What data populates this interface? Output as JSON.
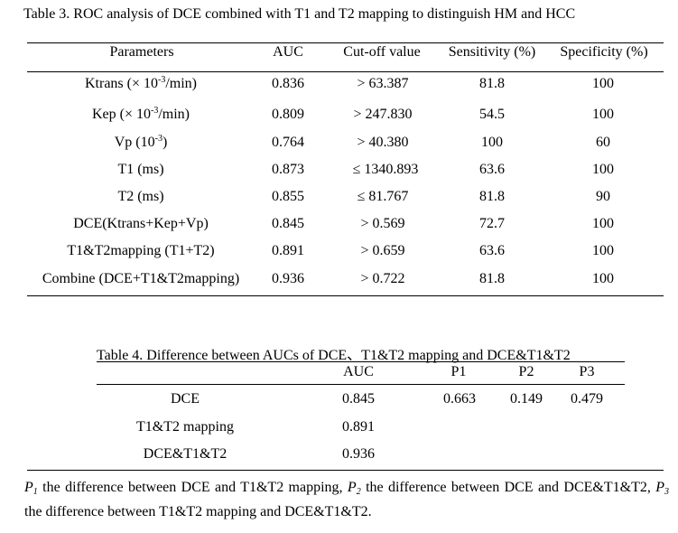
{
  "table3": {
    "caption": "Table 3. ROC analysis of DCE combined with T1 and T2 mapping to distinguish HM and HCC",
    "headers": [
      "Parameters",
      "AUC",
      "Cut-off value",
      "Sensitivity (%)",
      "Specificity (%)"
    ],
    "rows": [
      {
        "param": "Ktrans (× 10",
        "param_sup": "-3",
        "param_tail": "/min)",
        "auc": "0.836",
        "cutoff": "> 63.387",
        "sens": "81.8",
        "spec": "100"
      },
      {
        "param": "Kep (× 10",
        "param_sup": "-3",
        "param_tail": "/min)",
        "auc": "0.809",
        "cutoff": "> 247.830",
        "sens": "54.5",
        "spec": "100"
      },
      {
        "param": "Vp (10",
        "param_sup": "-3",
        "param_tail": ")",
        "auc": "0.764",
        "cutoff": "> 40.380",
        "sens": "100",
        "spec": "60"
      },
      {
        "param": "T1 (ms)",
        "auc": "0.873",
        "cutoff": "≤ 1340.893",
        "sens": "63.6",
        "spec": "100"
      },
      {
        "param": "T2 (ms)",
        "auc": "0.855",
        "cutoff": "≤ 81.767",
        "sens": "81.8",
        "spec": "90"
      },
      {
        "param": "DCE(Ktrans+Kep+Vp)",
        "auc": "0.845",
        "cutoff": "> 0.569",
        "sens": "72.7",
        "spec": "100"
      },
      {
        "param": "T1&T2mapping (T1+T2)",
        "auc": "0.891",
        "cutoff": "> 0.659",
        "sens": "63.6",
        "spec": "100"
      },
      {
        "param": "Combine (DCE+T1&T2mapping)",
        "auc": "0.936",
        "cutoff": "> 0.722",
        "sens": "81.8",
        "spec": "100"
      }
    ]
  },
  "table4": {
    "caption": "Table 4. Difference between AUCs of DCE、T1&T2 mapping and DCE&T1&T2",
    "headers": [
      "AUC",
      "P1",
      "P2",
      "P3"
    ],
    "rows": [
      {
        "name": "DCE",
        "auc": "0.845",
        "p1": "0.663",
        "p2": "0.149",
        "p3": "0.479"
      },
      {
        "name": "T1&T2 mapping",
        "auc": "0.891"
      },
      {
        "name": "DCE&T1&T2",
        "auc": "0.936"
      }
    ]
  },
  "footnote": {
    "p1_label": "P",
    "p1_sub": "1",
    "p1_text": " the difference between DCE and T1&T2 mapping, ",
    "p2_label": "P",
    "p2_sub": "2",
    "p2_text": " the difference between DCE and DCE&T1&T2, ",
    "p3_label": "P",
    "p3_sub": "3",
    "p3_text": " the difference between T1&T2 mapping and DCE&T1&T2."
  }
}
